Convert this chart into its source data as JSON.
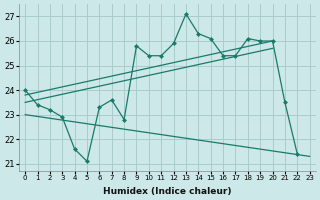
{
  "xlabel": "Humidex (Indice chaleur)",
  "background_color": "#cce8e8",
  "grid_color": "#aacccc",
  "line_color": "#1a7a6a",
  "xlim": [
    -0.5,
    23.5
  ],
  "ylim": [
    20.7,
    27.5
  ],
  "yticks": [
    21,
    22,
    23,
    24,
    25,
    26,
    27
  ],
  "xticks": [
    0,
    1,
    2,
    3,
    4,
    5,
    6,
    7,
    8,
    9,
    10,
    11,
    12,
    13,
    14,
    15,
    16,
    17,
    18,
    19,
    20,
    21,
    22,
    23
  ],
  "main_x": [
    0,
    1,
    2,
    3,
    4,
    5,
    6,
    7,
    8,
    9,
    10,
    11,
    12,
    13,
    14,
    15,
    16,
    17,
    18,
    19,
    20,
    21,
    22
  ],
  "main_y": [
    24.0,
    23.4,
    23.2,
    22.9,
    21.6,
    21.1,
    23.3,
    23.6,
    22.8,
    25.8,
    25.4,
    25.4,
    25.9,
    27.1,
    26.3,
    26.1,
    25.4,
    25.4,
    26.1,
    26.0,
    26.0,
    23.5,
    21.4
  ],
  "trend1_x": [
    0,
    20
  ],
  "trend1_y": [
    23.8,
    26.0
  ],
  "trend2_x": [
    0,
    20
  ],
  "trend2_y": [
    23.5,
    25.7
  ],
  "decline_x": [
    0,
    23
  ],
  "decline_y": [
    23.0,
    21.3
  ]
}
